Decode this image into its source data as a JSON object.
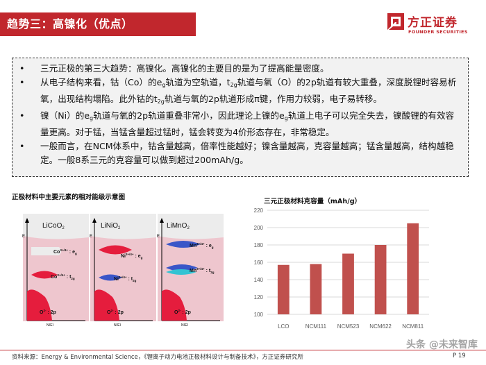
{
  "header": {
    "title": "趋势三：高镍化（优点）",
    "logo_cn": "方正证券",
    "logo_en": "FOUNDER SECURITIES"
  },
  "bullets": [
    {
      "text": "三元正极的第三大趋势：高镍化。高镍化的主要目的是为了提高能量密度。"
    },
    {
      "text_a": "从电子结构来看，钴（Co）的e",
      "sub_a": "g",
      "text_b": "轨道为空轨道，t",
      "sub_b": "2g",
      "text_c": "轨道与氧（O）的2p轨道有较大重叠，深度脱锂时容易析氧，出现结构塌陷。此外钴的t",
      "sub_c": "2g",
      "text_d": "轨道与氧的2p轨道形成π键，作用力较弱，电子易转移。"
    },
    {
      "text_a": "镍（Ni）的e",
      "sub_a": "g",
      "text_b": "轨道与氧的2p轨道重叠非常小，因此理论上镍的e",
      "sub_b": "g",
      "text_c": "轨道上电子可以完全失去，镍酸锂的有效容量更高。对于锰，当锰含量超过锰时，锰会转变为4价形态存在，非常稳定。"
    },
    {
      "text": "一般而言，在NCM体系中，钴含量越高，倍率性能越好；镍含量越高，克容量越高；锰含量越高，结构越稳定。一般8系三元的克容量可以做到超过200mAh/g。"
    }
  ],
  "bullet_symbol": "•",
  "diagram": {
    "title": "正极材料中主要元素的相对能级示意图",
    "y_label": "E",
    "x_label": "N(E)",
    "panels": [
      {
        "name": "LiCoO",
        "name_sub": "2",
        "levels": [
          {
            "ion": "Co",
            "sup": "3+/4+",
            "orbital": "e",
            "orb_sub": "g"
          },
          {
            "ion": "Co",
            "sup": "3+/4+",
            "orbital": "t",
            "orb_sub": "2g"
          },
          {
            "ion": "O",
            "sup": "2-",
            "orbital": "2p",
            "orb_sub": ""
          }
        ]
      },
      {
        "name": "LiNiO",
        "name_sub": "2",
        "levels": [
          {
            "ion": "Ni",
            "sup": "3+/4+",
            "orbital": "e",
            "orb_sub": "g"
          },
          {
            "ion": "Ni",
            "sup": "3+/4+",
            "orbital": "t",
            "orb_sub": "2g"
          },
          {
            "ion": "O",
            "sup": "2-",
            "orbital": "2p",
            "orb_sub": ""
          }
        ]
      },
      {
        "name": "LiMnO",
        "name_sub": "2",
        "levels": [
          {
            "ion": "Mn",
            "sup": "3+/4+",
            "orbital": "e",
            "orb_sub": "g"
          },
          {
            "ion": "Mn",
            "sup": "3+/4+",
            "orbital": "t",
            "orb_sub": "2g"
          },
          {
            "ion": "O",
            "sup": "2-",
            "orbital": "2p",
            "orb_sub": ""
          }
        ]
      }
    ],
    "colors": {
      "pink": "#f1a7b7",
      "red": "#e51d3d",
      "blue": "#3a56c8",
      "cyan": "#33c3d3",
      "gray": "#ececec"
    }
  },
  "chart_data": {
    "type": "bar",
    "title": "三元正极材料克容量（mAh/g）",
    "categories": [
      "LCO",
      "NCM111",
      "NCM523",
      "NCM622",
      "NCM811"
    ],
    "values": [
      157,
      158,
      170,
      180,
      205
    ],
    "ylim": [
      100,
      220
    ],
    "yticks": [
      100,
      120,
      140,
      160,
      180,
      200,
      220
    ],
    "grid": true,
    "bar_color": "#c0504d"
  },
  "footer": {
    "source": "资料来源：Energy & Environmental Science，《锂离子动力电池正极材料设计与制备技术》，方正证券研究所",
    "page": "P  19",
    "watermark": "头条 @未来智库"
  }
}
